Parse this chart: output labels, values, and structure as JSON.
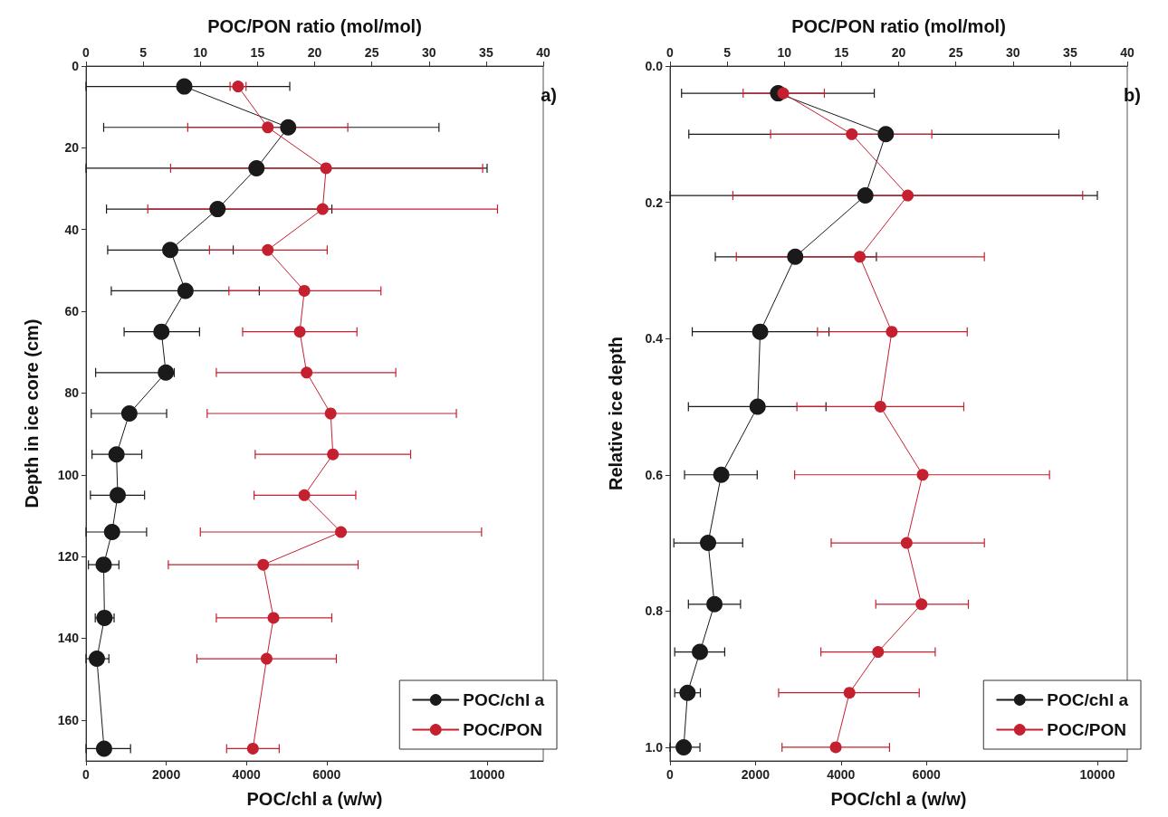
{
  "chart_data": [
    {
      "type": "line",
      "xlabel": "POC/chl a (w/w)",
      "x2label": "POC/PON ratio (mol/mol)",
      "ylabel": "Depth in ice core (cm)",
      "annotations": [
        "a)"
      ],
      "xlim": [
        0,
        11400
      ],
      "xticks": [
        0,
        2000,
        4000,
        6000,
        10000
      ],
      "x2lim": [
        0,
        40
      ],
      "x2ticks": [
        0,
        5,
        10,
        15,
        20,
        25,
        30,
        35,
        40
      ],
      "ylim": [
        170,
        0
      ],
      "yticks": [
        0,
        20,
        40,
        60,
        80,
        100,
        120,
        140,
        160
      ],
      "legend": "bottom right",
      "marker": "circle",
      "line_style": "solid",
      "grid": false,
      "series": [
        {
          "name": "POC/chl a",
          "color": "#1a1a1a",
          "x": [
            2450,
            5040,
            4250,
            3280,
            2100,
            2480,
            1880,
            1990,
            1080,
            760,
            790,
            650,
            440,
            460,
            270,
            450
          ],
          "values": [
            5,
            15,
            25,
            35,
            45,
            55,
            65,
            75,
            85,
            95,
            105,
            114,
            122,
            135,
            145,
            167
          ],
          "xerrors": [
            [
              0,
              5080
            ],
            [
              440,
              8800
            ],
            [
              0,
              10000
            ],
            [
              510,
              6130
            ],
            [
              540,
              3670
            ],
            [
              630,
              4320
            ],
            [
              950,
              2830
            ],
            [
              240,
              2200
            ],
            [
              130,
              2010
            ],
            [
              150,
              1390
            ],
            [
              110,
              1460
            ],
            [
              0,
              1510
            ],
            [
              60,
              820
            ],
            [
              230,
              700
            ],
            [
              0,
              570
            ],
            [
              0,
              1110
            ]
          ]
        },
        {
          "name": "POC/PON",
          "color": "#c4202f",
          "axis": "x2",
          "x": [
            13.3,
            15.9,
            21.0,
            20.7,
            15.9,
            19.1,
            18.7,
            19.3,
            21.4,
            21.6,
            19.1,
            22.3,
            15.5,
            16.4,
            15.8,
            14.6
          ],
          "values": [
            5,
            15,
            25,
            35,
            45,
            55,
            65,
            75,
            85,
            95,
            105,
            114,
            122,
            135,
            145,
            167
          ],
          "xerrors": [
            [
              12.6,
              14.0
            ],
            [
              8.9,
              22.9
            ],
            [
              7.4,
              34.7
            ],
            [
              5.4,
              36.0
            ],
            [
              10.8,
              21.1
            ],
            [
              12.5,
              25.8
            ],
            [
              13.7,
              23.7
            ],
            [
              11.4,
              27.1
            ],
            [
              10.6,
              32.4
            ],
            [
              14.8,
              28.4
            ],
            [
              14.7,
              23.6
            ],
            [
              10.0,
              34.6
            ],
            [
              7.2,
              23.8
            ],
            [
              11.4,
              21.5
            ],
            [
              9.7,
              21.9
            ],
            [
              12.3,
              16.9
            ]
          ]
        }
      ]
    },
    {
      "type": "line",
      "xlabel": "POC/chl a (w/w)",
      "x2label": "POC/PON ratio (mol/mol)",
      "ylabel": "Relative ice depth",
      "annotations": [
        "b)"
      ],
      "xlim": [
        0,
        10700
      ],
      "xticks": [
        0,
        2000,
        4000,
        6000,
        10000
      ],
      "x2lim": [
        0,
        40
      ],
      "x2ticks": [
        0,
        5,
        10,
        15,
        20,
        25,
        30,
        35,
        40
      ],
      "ylim": [
        1.02,
        0
      ],
      "yticks": [
        {
          "value": 0,
          "label": "0.0"
        },
        0.2,
        0.4,
        0.6,
        0.8,
        {
          "value": 1,
          "label": "1.0"
        }
      ],
      "legend": "bottom right",
      "marker": "circle",
      "line_style": "solid",
      "grid": false,
      "series": [
        {
          "name": "POC/chl a",
          "color": "#1a1a1a",
          "x": [
            2530,
            5050,
            4570,
            2930,
            2110,
            2050,
            1200,
            890,
            1040,
            700,
            410,
            320
          ],
          "values": [
            0.04,
            0.1,
            0.19,
            0.28,
            0.39,
            0.5,
            0.6,
            0.7,
            0.79,
            0.86,
            0.92,
            1.0
          ],
          "xerrors": [
            [
              270,
              4780
            ],
            [
              440,
              9100
            ],
            [
              0,
              10000
            ],
            [
              1060,
              4830
            ],
            [
              520,
              3720
            ],
            [
              430,
              3650
            ],
            [
              340,
              2040
            ],
            [
              90,
              1700
            ],
            [
              430,
              1650
            ],
            [
              110,
              1280
            ],
            [
              110,
              710
            ],
            [
              0,
              700
            ]
          ]
        },
        {
          "name": "POC/PON",
          "color": "#c4202f",
          "axis": "x2",
          "x": [
            9.9,
            15.9,
            20.8,
            16.6,
            19.4,
            18.4,
            22.1,
            20.7,
            22.0,
            18.2,
            15.7,
            14.5
          ],
          "values": [
            0.04,
            0.1,
            0.19,
            0.28,
            0.39,
            0.5,
            0.6,
            0.7,
            0.79,
            0.86,
            0.92,
            1.0
          ],
          "xerrors": [
            [
              6.4,
              13.5
            ],
            [
              8.8,
              22.9
            ],
            [
              5.5,
              36.1
            ],
            [
              5.8,
              27.5
            ],
            [
              12.9,
              26.0
            ],
            [
              11.1,
              25.7
            ],
            [
              10.9,
              33.2
            ],
            [
              14.1,
              27.5
            ],
            [
              18.0,
              26.1
            ],
            [
              13.2,
              23.2
            ],
            [
              9.5,
              21.8
            ],
            [
              9.8,
              19.2
            ]
          ]
        }
      ]
    }
  ]
}
